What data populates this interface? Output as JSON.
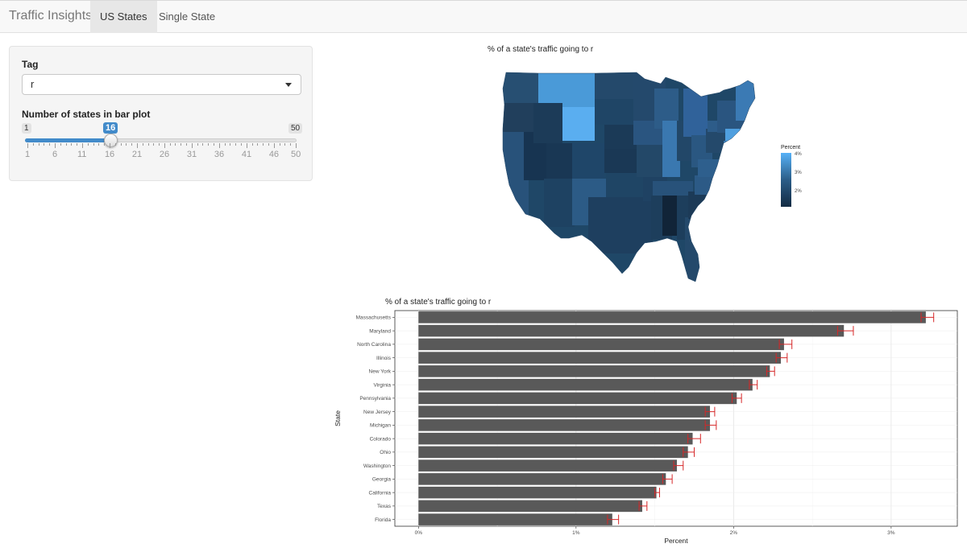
{
  "navbar": {
    "brand": "Traffic Insights",
    "tabs": [
      {
        "label": "US States",
        "active": true
      },
      {
        "label": "Single State",
        "active": false
      }
    ]
  },
  "sidebar": {
    "tag_label": "Tag",
    "tag_value": "r",
    "slider_label": "Number of states in bar plot",
    "slider_min": "1",
    "slider_max": "50",
    "slider_value": "16",
    "tick_labels": [
      "1",
      "6",
      "11",
      "16",
      "21",
      "26",
      "31",
      "36",
      "41",
      "46",
      "50"
    ]
  },
  "map": {
    "title": "% of a state's traffic going to r",
    "legend_title": "Percent",
    "legend_labels": [
      "4%",
      "3%",
      "2%"
    ],
    "colors": {
      "low": "#132b43",
      "mid": "#2b5d88",
      "high": "#56b1f7"
    }
  },
  "chart_data": {
    "type": "bar",
    "orientation": "horizontal",
    "title": "% of a state's traffic going to r",
    "xlabel": "Percent",
    "ylabel": "State",
    "xlim": [
      -0.15,
      3.42
    ],
    "x_ticks": [
      0,
      1,
      2,
      3
    ],
    "x_tick_labels": [
      "0%",
      "1%",
      "2%",
      "3%"
    ],
    "bar_color": "#595959",
    "error_color": "#d62728",
    "categories": [
      "Massachusetts",
      "Maryland",
      "North Carolina",
      "Illinois",
      "New York",
      "Virginia",
      "Pennsylvania",
      "New Jersey",
      "Michigan",
      "Colorado",
      "Ohio",
      "Washington",
      "Georgia",
      "California",
      "Texas",
      "Florida"
    ],
    "values": [
      3.22,
      2.7,
      2.32,
      2.3,
      2.23,
      2.12,
      2.02,
      1.85,
      1.85,
      1.74,
      1.71,
      1.64,
      1.57,
      1.51,
      1.42,
      1.23
    ],
    "err_low": [
      3.19,
      2.66,
      2.29,
      2.27,
      2.21,
      2.1,
      1.99,
      1.82,
      1.82,
      1.71,
      1.68,
      1.62,
      1.55,
      1.5,
      1.4,
      1.2
    ],
    "err_high": [
      3.27,
      2.76,
      2.37,
      2.34,
      2.26,
      2.15,
      2.05,
      1.88,
      1.89,
      1.79,
      1.75,
      1.68,
      1.61,
      1.53,
      1.45,
      1.27
    ]
  }
}
